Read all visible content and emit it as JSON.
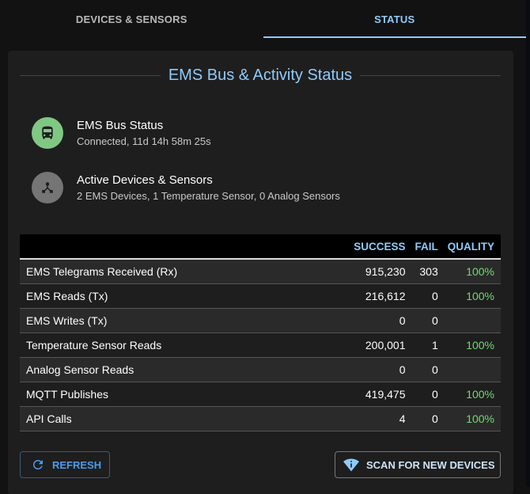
{
  "tabs": [
    {
      "label": "DEVICES & SENSORS",
      "active": false
    },
    {
      "label": "STATUS",
      "active": true
    }
  ],
  "card": {
    "title": "EMS Bus & Activity Status",
    "items": [
      {
        "icon": "bus-icon",
        "color": "#81c784",
        "title": "EMS Bus Status",
        "subtitle": "Connected, 11d 14h 58m 25s"
      },
      {
        "icon": "device-hub-icon",
        "color": "#757575",
        "title": "Active Devices & Sensors",
        "subtitle": "2 EMS Devices, 1 Temperature Sensor, 0 Analog Sensors"
      }
    ],
    "table": {
      "headers": [
        "",
        "SUCCESS",
        "FAIL",
        "QUALITY"
      ],
      "rows": [
        {
          "name": "EMS Telegrams Received (Rx)",
          "success": "915,230",
          "fail": "303",
          "quality": "100%"
        },
        {
          "name": "EMS Reads (Tx)",
          "success": "216,612",
          "fail": "0",
          "quality": "100%"
        },
        {
          "name": "EMS Writes (Tx)",
          "success": "0",
          "fail": "0",
          "quality": ""
        },
        {
          "name": "Temperature Sensor Reads",
          "success": "200,001",
          "fail": "1",
          "quality": "100%"
        },
        {
          "name": "Analog Sensor Reads",
          "success": "0",
          "fail": "0",
          "quality": ""
        },
        {
          "name": "MQTT Publishes",
          "success": "419,475",
          "fail": "0",
          "quality": "100%"
        },
        {
          "name": "API Calls",
          "success": "4",
          "fail": "0",
          "quality": "100%"
        }
      ]
    },
    "buttons": {
      "refresh": "REFRESH",
      "scan": "SCAN FOR NEW DEVICES"
    }
  },
  "colors": {
    "accent": "#90caf9",
    "success": "#6edc6e",
    "bus_ok": "#81c784"
  }
}
